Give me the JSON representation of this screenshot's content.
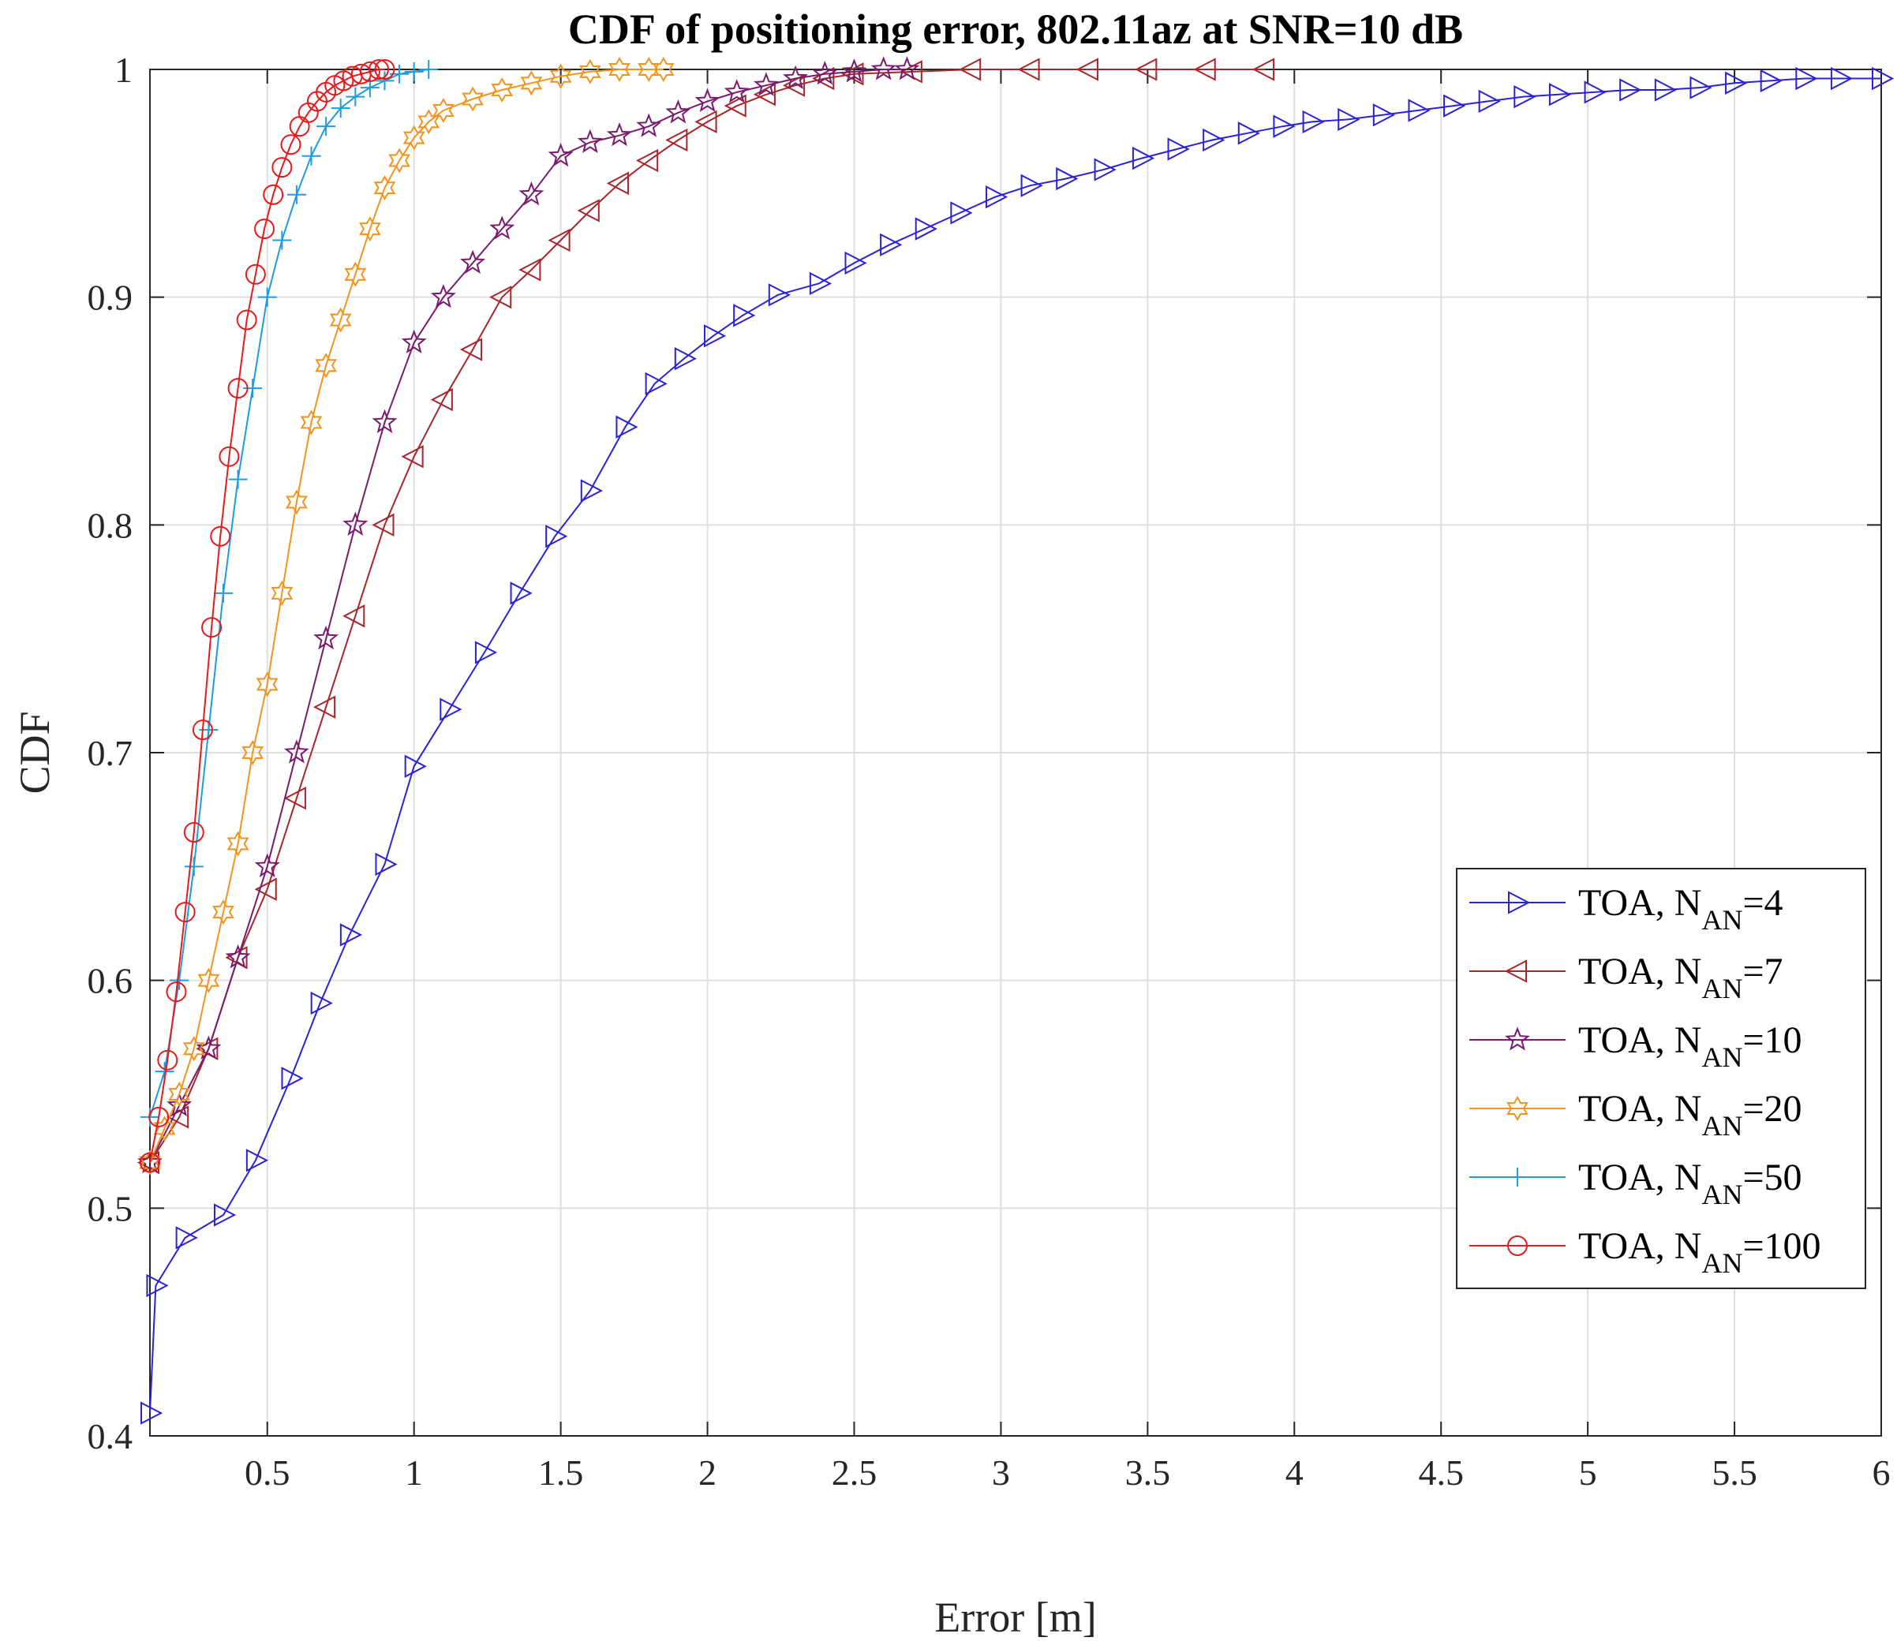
{
  "chart_data": {
    "type": "line",
    "title": "CDF of positioning error, 802.11az at SNR=10 dB",
    "xlabel": "Error [m]",
    "ylabel": "CDF",
    "xlim": [
      0.1,
      6
    ],
    "ylim": [
      0.4,
      1
    ],
    "x_ticks": [
      "0.5",
      "1",
      "1.5",
      "2",
      "2.5",
      "3",
      "3.5",
      "4",
      "4.5",
      "5",
      "5.5",
      "6"
    ],
    "y_ticks": [
      "0.4",
      "0.5",
      "0.6",
      "0.7",
      "0.8",
      "0.9",
      "1"
    ],
    "grid": true,
    "legend_position": "lower-right",
    "series": [
      {
        "name": "TOA, N_AN=4",
        "label_prefix": "TOA, N",
        "label_sub": "AN",
        "label_suffix": "=4",
        "color": "#2b22d6",
        "marker": "triangle-right",
        "x": [
          0.1,
          0.12,
          0.22,
          0.35,
          0.46,
          0.58,
          0.68,
          0.78,
          0.9,
          1.0,
          1.12,
          1.24,
          1.36,
          1.48,
          1.6,
          1.72,
          1.82,
          1.92,
          2.02,
          2.12,
          2.24,
          2.38,
          2.5,
          2.62,
          2.74,
          2.86,
          2.98,
          3.1,
          3.22,
          3.35,
          3.48,
          3.6,
          3.72,
          3.84,
          3.96,
          4.06,
          4.18,
          4.3,
          4.42,
          4.54,
          4.66,
          4.78,
          4.9,
          5.02,
          5.14,
          5.26,
          5.38,
          5.5,
          5.62,
          5.74,
          5.86,
          6.0
        ],
        "y": [
          0.41,
          0.466,
          0.487,
          0.497,
          0.521,
          0.557,
          0.59,
          0.62,
          0.651,
          0.694,
          0.719,
          0.744,
          0.77,
          0.795,
          0.815,
          0.843,
          0.862,
          0.873,
          0.883,
          0.892,
          0.901,
          0.906,
          0.915,
          0.923,
          0.93,
          0.937,
          0.944,
          0.949,
          0.952,
          0.956,
          0.961,
          0.965,
          0.969,
          0.972,
          0.975,
          0.977,
          0.978,
          0.98,
          0.982,
          0.984,
          0.986,
          0.988,
          0.989,
          0.99,
          0.991,
          0.991,
          0.992,
          0.994,
          0.995,
          0.996,
          0.996,
          0.996
        ]
      },
      {
        "name": "TOA, N_AN=7",
        "label_prefix": "TOA, N",
        "label_sub": "AN",
        "label_suffix": "=7",
        "color": "#a8262a",
        "marker": "triangle-left",
        "x": [
          0.1,
          0.2,
          0.3,
          0.4,
          0.5,
          0.6,
          0.7,
          0.8,
          0.9,
          1.0,
          1.1,
          1.2,
          1.3,
          1.4,
          1.5,
          1.6,
          1.7,
          1.8,
          1.9,
          2.0,
          2.1,
          2.2,
          2.3,
          2.4,
          2.5,
          2.7,
          2.9,
          3.1,
          3.3,
          3.5,
          3.7,
          3.9
        ],
        "y": [
          0.52,
          0.54,
          0.57,
          0.61,
          0.64,
          0.68,
          0.72,
          0.76,
          0.8,
          0.83,
          0.855,
          0.877,
          0.9,
          0.912,
          0.925,
          0.938,
          0.95,
          0.96,
          0.969,
          0.977,
          0.984,
          0.989,
          0.993,
          0.996,
          0.998,
          0.999,
          1.0,
          1.0,
          1.0,
          1.0,
          1.0,
          1.0
        ]
      },
      {
        "name": "TOA, N_AN=10",
        "label_prefix": "TOA, N",
        "label_sub": "AN",
        "label_suffix": "=10",
        "color": "#7a1a6e",
        "marker": "pentagram",
        "x": [
          0.1,
          0.2,
          0.3,
          0.4,
          0.5,
          0.6,
          0.7,
          0.8,
          0.9,
          1.0,
          1.1,
          1.2,
          1.3,
          1.4,
          1.5,
          1.6,
          1.7,
          1.8,
          1.9,
          2.0,
          2.1,
          2.2,
          2.3,
          2.4,
          2.5,
          2.6,
          2.68
        ],
        "y": [
          0.52,
          0.545,
          0.57,
          0.61,
          0.65,
          0.7,
          0.75,
          0.8,
          0.845,
          0.88,
          0.9,
          0.915,
          0.93,
          0.945,
          0.962,
          0.968,
          0.971,
          0.975,
          0.981,
          0.986,
          0.99,
          0.993,
          0.996,
          0.998,
          0.999,
          1.0,
          1.0
        ]
      },
      {
        "name": "TOA, N_AN=20",
        "label_prefix": "TOA, N",
        "label_sub": "AN",
        "label_suffix": "=20",
        "color": "#f2931e",
        "marker": "hexagram",
        "x": [
          0.1,
          0.15,
          0.2,
          0.25,
          0.3,
          0.35,
          0.4,
          0.45,
          0.5,
          0.55,
          0.6,
          0.65,
          0.7,
          0.75,
          0.8,
          0.85,
          0.9,
          0.95,
          1.0,
          1.05,
          1.1,
          1.2,
          1.3,
          1.4,
          1.5,
          1.6,
          1.7,
          1.8,
          1.85
        ],
        "y": [
          0.52,
          0.535,
          0.55,
          0.57,
          0.6,
          0.63,
          0.66,
          0.7,
          0.73,
          0.77,
          0.81,
          0.845,
          0.87,
          0.89,
          0.91,
          0.93,
          0.948,
          0.96,
          0.97,
          0.977,
          0.982,
          0.987,
          0.991,
          0.994,
          0.997,
          0.999,
          1.0,
          1.0,
          1.0
        ]
      },
      {
        "name": "TOA, N_AN=50",
        "label_prefix": "TOA, N",
        "label_sub": "AN",
        "label_suffix": "=50",
        "color": "#1f9be0",
        "marker": "plus",
        "x": [
          0.1,
          0.15,
          0.2,
          0.25,
          0.3,
          0.35,
          0.4,
          0.45,
          0.5,
          0.55,
          0.6,
          0.65,
          0.7,
          0.75,
          0.8,
          0.85,
          0.9,
          0.95,
          1.0,
          1.05
        ],
        "y": [
          0.54,
          0.56,
          0.6,
          0.65,
          0.71,
          0.77,
          0.82,
          0.86,
          0.9,
          0.925,
          0.945,
          0.962,
          0.975,
          0.983,
          0.988,
          0.992,
          0.995,
          0.998,
          0.999,
          1.0
        ]
      },
      {
        "name": "TOA, N_AN=100",
        "label_prefix": "TOA, N",
        "label_sub": "AN",
        "label_suffix": "=100",
        "color": "#e8191b",
        "marker": "circle",
        "x": [
          0.1,
          0.13,
          0.16,
          0.19,
          0.22,
          0.25,
          0.28,
          0.31,
          0.34,
          0.37,
          0.4,
          0.43,
          0.46,
          0.49,
          0.52,
          0.55,
          0.58,
          0.61,
          0.64,
          0.67,
          0.7,
          0.73,
          0.76,
          0.79,
          0.82,
          0.85,
          0.88,
          0.9
        ],
        "y": [
          0.52,
          0.54,
          0.565,
          0.595,
          0.63,
          0.665,
          0.71,
          0.755,
          0.795,
          0.83,
          0.86,
          0.89,
          0.91,
          0.93,
          0.945,
          0.957,
          0.967,
          0.975,
          0.981,
          0.986,
          0.99,
          0.993,
          0.995,
          0.997,
          0.998,
          0.999,
          1.0,
          1.0
        ]
      }
    ]
  }
}
